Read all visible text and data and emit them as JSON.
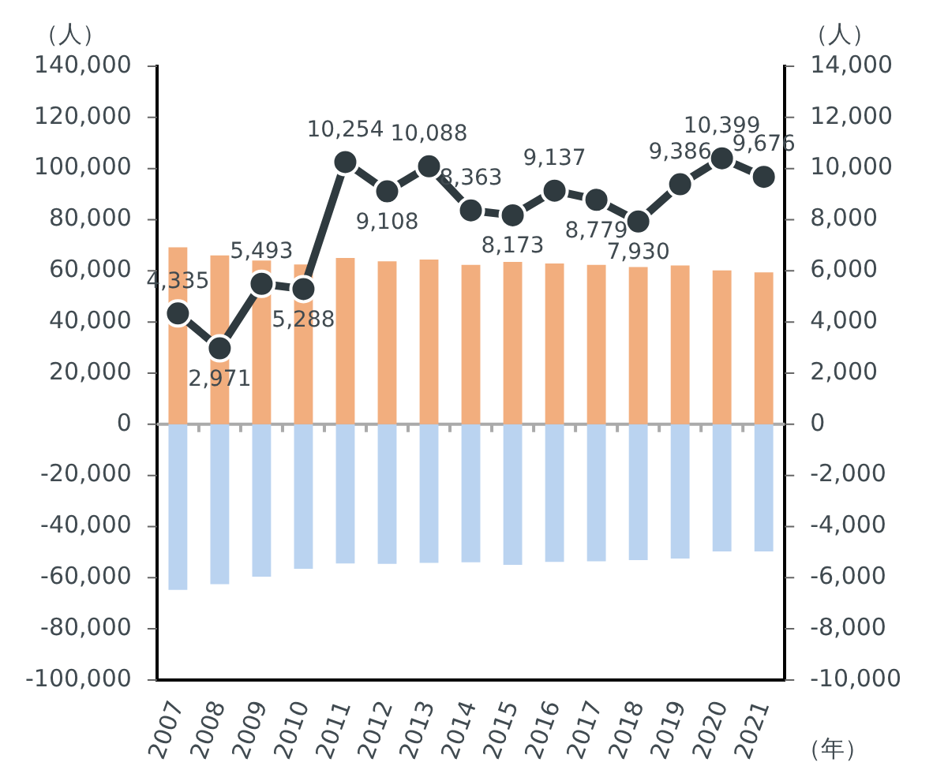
{
  "chart_data": {
    "type": "bar",
    "stacked": true,
    "ylabel": "（人）",
    "y2label": "（人）",
    "annotations": [
      "（年）"
    ],
    "categories": [
      "2007",
      "2008",
      "2009",
      "2010",
      "2011",
      "2012",
      "2013",
      "2014",
      "2015",
      "2016",
      "2017",
      "2018",
      "2019",
      "2020",
      "2021"
    ],
    "series": [
      {
        "color": "#f2ae7e",
        "values": [
          69200,
          66000,
          64000,
          62500,
          65000,
          63700,
          64400,
          62300,
          63500,
          62900,
          62300,
          61500,
          62100,
          60200,
          59400
        ]
      },
      {
        "color": "#bad3f0",
        "values": [
          -64800,
          -62500,
          -59600,
          -56500,
          -54400,
          -54600,
          -54200,
          -54000,
          -55000,
          -53800,
          -53600,
          -53100,
          -52500,
          -49700,
          -49700
        ]
      },
      {
        "type": "line",
        "axis": "y2",
        "color": "#2f3a3f",
        "marker": "circle",
        "values": [
          4335,
          2971,
          5493,
          5288,
          10254,
          9108,
          10088,
          8363,
          8173,
          9137,
          8779,
          7930,
          9386,
          10399,
          9676
        ],
        "value_labels": [
          "4,335",
          "2,971",
          "5,493",
          "5,288",
          "10,254",
          "9,108",
          "10,088",
          "8,363",
          "8,173",
          "9,137",
          "8,779",
          "7,930",
          "9,386",
          "10,399",
          "9,676"
        ]
      }
    ],
    "ylim": [
      -100000,
      140000
    ],
    "yticks": [
      {
        "value": -100000,
        "label": "-100,000"
      },
      {
        "value": -80000,
        "label": "-80,000"
      },
      {
        "value": -60000,
        "label": "-60,000"
      },
      {
        "value": -40000,
        "label": "-40,000"
      },
      {
        "value": -20000,
        "label": "-20,000"
      },
      0,
      {
        "value": 20000,
        "label": "20,000"
      },
      {
        "value": 40000,
        "label": "40,000"
      },
      {
        "value": 60000,
        "label": "60,000"
      },
      {
        "value": 80000,
        "label": "80,000"
      },
      {
        "value": 100000,
        "label": "100,000"
      },
      {
        "value": 120000,
        "label": "120,000"
      },
      {
        "value": 140000,
        "label": "140,000"
      }
    ],
    "y2lim": [
      -10000,
      14000
    ],
    "y2ticks": [
      {
        "value": -10000,
        "label": "-10,000"
      },
      {
        "value": -8000,
        "label": "-8,000"
      },
      {
        "value": -6000,
        "label": "-6,000"
      },
      {
        "value": -4000,
        "label": "-4,000"
      },
      {
        "value": -2000,
        "label": "-2,000"
      },
      0,
      {
        "value": 2000,
        "label": "2,000"
      },
      {
        "value": 4000,
        "label": "4,000"
      },
      {
        "value": 6000,
        "label": "6,000"
      },
      {
        "value": 8000,
        "label": "8,000"
      },
      {
        "value": 10000,
        "label": "10,000"
      },
      {
        "value": 12000,
        "label": "12,000"
      },
      {
        "value": 14000,
        "label": "14,000"
      }
    ]
  }
}
